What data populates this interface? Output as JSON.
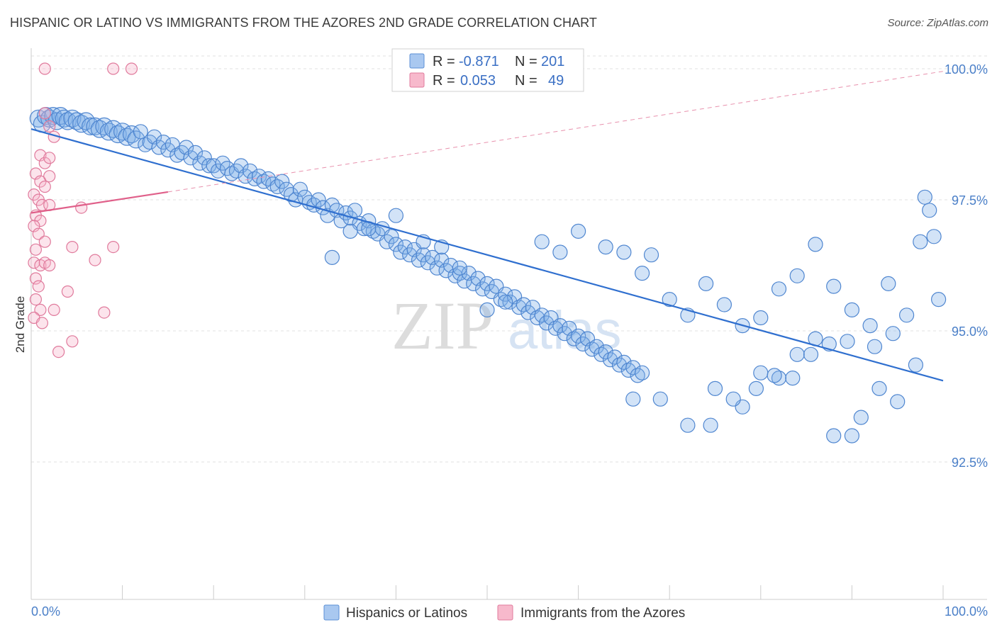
{
  "title": "HISPANIC OR LATINO VS IMMIGRANTS FROM THE AZORES 2ND GRADE CORRELATION CHART",
  "source": "Source: ZipAtlas.com",
  "watermark": {
    "zip": "ZIP",
    "atlas": "atlas"
  },
  "legend": {
    "r_label": "R =",
    "n_label": "N =",
    "rows": [
      {
        "r": "-0.871",
        "n": "201",
        "color": "#a9c8f0",
        "stroke": "#5b8fd6"
      },
      {
        "r": "0.053",
        "n": "49",
        "color": "#f7b9cc",
        "stroke": "#e07a9c"
      }
    ]
  },
  "chart_data": {
    "type": "scatter",
    "title": "HISPANIC OR LATINO VS IMMIGRANTS FROM THE AZORES 2ND GRADE CORRELATION CHART",
    "xlabel": "",
    "ylabel": "2nd Grade",
    "xlim": [
      0,
      100
    ],
    "ylim": [
      89.8,
      100.8
    ],
    "x_tick_labels": [
      "0.0%",
      "100.0%"
    ],
    "y_ticks": [
      92.5,
      95.0,
      97.5,
      100.0
    ],
    "y_tick_labels": [
      "92.5%",
      "95.0%",
      "97.5%",
      "100.0%"
    ],
    "grid": true,
    "legend_position": "top-center",
    "series": [
      {
        "name": "Hispanics or Latinos",
        "color": "#7faee8",
        "stroke": "#4f86d0",
        "trend": {
          "x0": 0,
          "y0": 98.85,
          "x1": 100,
          "y1": 94.05
        },
        "points": [
          [
            0.8,
            99.05
          ],
          [
            1.2,
            98.95
          ],
          [
            1.6,
            99.1
          ],
          [
            2.0,
            99.05
          ],
          [
            2.4,
            99.1
          ],
          [
            2.8,
            99.0
          ],
          [
            3.2,
            99.1
          ],
          [
            3.6,
            99.05
          ],
          [
            4.0,
            99.0
          ],
          [
            4.5,
            99.05
          ],
          [
            5.0,
            99.0
          ],
          [
            5.5,
            98.95
          ],
          [
            6.0,
            99.0
          ],
          [
            6.5,
            98.9
          ],
          [
            7.0,
            98.9
          ],
          [
            7.5,
            98.85
          ],
          [
            8.0,
            98.9
          ],
          [
            8.5,
            98.8
          ],
          [
            9.0,
            98.85
          ],
          [
            9.5,
            98.75
          ],
          [
            10.0,
            98.8
          ],
          [
            10.5,
            98.7
          ],
          [
            11.0,
            98.75
          ],
          [
            11.5,
            98.65
          ],
          [
            12.0,
            98.8
          ],
          [
            12.5,
            98.55
          ],
          [
            13.0,
            98.6
          ],
          [
            13.5,
            98.7
          ],
          [
            14.0,
            98.5
          ],
          [
            14.5,
            98.6
          ],
          [
            15.0,
            98.45
          ],
          [
            15.5,
            98.55
          ],
          [
            16.0,
            98.35
          ],
          [
            16.5,
            98.4
          ],
          [
            17.0,
            98.5
          ],
          [
            17.5,
            98.3
          ],
          [
            18.0,
            98.4
          ],
          [
            18.5,
            98.2
          ],
          [
            19.0,
            98.3
          ],
          [
            19.5,
            98.15
          ],
          [
            20.0,
            98.15
          ],
          [
            20.5,
            98.05
          ],
          [
            21.0,
            98.2
          ],
          [
            21.5,
            98.1
          ],
          [
            22.0,
            98.0
          ],
          [
            22.5,
            98.05
          ],
          [
            23.0,
            98.15
          ],
          [
            23.5,
            97.95
          ],
          [
            24.0,
            98.05
          ],
          [
            24.5,
            97.9
          ],
          [
            25.0,
            97.95
          ],
          [
            25.5,
            97.85
          ],
          [
            26.0,
            97.9
          ],
          [
            26.5,
            97.8
          ],
          [
            27.0,
            97.75
          ],
          [
            27.5,
            97.85
          ],
          [
            28.0,
            97.7
          ],
          [
            28.5,
            97.6
          ],
          [
            29.0,
            97.5
          ],
          [
            29.5,
            97.7
          ],
          [
            30.0,
            97.55
          ],
          [
            30.5,
            97.45
          ],
          [
            31.0,
            97.4
          ],
          [
            31.5,
            97.5
          ],
          [
            32.0,
            97.35
          ],
          [
            32.5,
            97.2
          ],
          [
            33.0,
            97.4
          ],
          [
            33.5,
            97.3
          ],
          [
            34.0,
            97.1
          ],
          [
            34.5,
            97.25
          ],
          [
            35.0,
            97.15
          ],
          [
            35.5,
            97.3
          ],
          [
            36.0,
            97.05
          ],
          [
            36.5,
            96.95
          ],
          [
            37.0,
            97.1
          ],
          [
            37.5,
            96.9
          ],
          [
            38.0,
            96.85
          ],
          [
            38.5,
            96.95
          ],
          [
            39.0,
            96.7
          ],
          [
            39.5,
            96.8
          ],
          [
            40.0,
            96.65
          ],
          [
            40.5,
            96.5
          ],
          [
            41.0,
            96.6
          ],
          [
            41.5,
            96.45
          ],
          [
            42.0,
            96.55
          ],
          [
            42.5,
            96.35
          ],
          [
            43.0,
            96.45
          ],
          [
            43.5,
            96.3
          ],
          [
            44.0,
            96.4
          ],
          [
            44.5,
            96.2
          ],
          [
            45.0,
            96.35
          ],
          [
            45.5,
            96.15
          ],
          [
            46.0,
            96.25
          ],
          [
            46.5,
            96.05
          ],
          [
            47.0,
            96.1
          ],
          [
            47.5,
            95.95
          ],
          [
            48.0,
            96.1
          ],
          [
            48.5,
            95.9
          ],
          [
            49.0,
            96.0
          ],
          [
            49.5,
            95.8
          ],
          [
            50.0,
            95.9
          ],
          [
            50.5,
            95.75
          ],
          [
            51.0,
            95.85
          ],
          [
            51.5,
            95.6
          ],
          [
            52.0,
            95.7
          ],
          [
            52.5,
            95.55
          ],
          [
            53.0,
            95.65
          ],
          [
            53.5,
            95.45
          ],
          [
            54.0,
            95.5
          ],
          [
            54.5,
            95.35
          ],
          [
            55.0,
            95.45
          ],
          [
            55.5,
            95.25
          ],
          [
            56.0,
            95.3
          ],
          [
            56.5,
            95.15
          ],
          [
            57.0,
            95.25
          ],
          [
            57.5,
            95.05
          ],
          [
            58.0,
            95.1
          ],
          [
            58.5,
            94.95
          ],
          [
            59.0,
            95.05
          ],
          [
            59.5,
            94.85
          ],
          [
            60.0,
            94.9
          ],
          [
            60.5,
            94.75
          ],
          [
            61.0,
            94.85
          ],
          [
            61.5,
            94.65
          ],
          [
            62.0,
            94.7
          ],
          [
            62.5,
            94.55
          ],
          [
            63.0,
            94.6
          ],
          [
            63.5,
            94.45
          ],
          [
            64.0,
            94.5
          ],
          [
            64.5,
            94.35
          ],
          [
            65.0,
            94.4
          ],
          [
            65.5,
            94.25
          ],
          [
            66.0,
            94.3
          ],
          [
            66.5,
            94.15
          ],
          [
            67.0,
            94.2
          ],
          [
            33.0,
            96.4
          ],
          [
            35.0,
            96.9
          ],
          [
            37.0,
            96.95
          ],
          [
            40.0,
            97.2
          ],
          [
            43.0,
            96.7
          ],
          [
            45.0,
            96.6
          ],
          [
            47.0,
            96.2
          ],
          [
            50.0,
            95.4
          ],
          [
            52.0,
            95.55
          ],
          [
            56.0,
            96.7
          ],
          [
            58.0,
            96.5
          ],
          [
            60.0,
            96.9
          ],
          [
            63.0,
            96.6
          ],
          [
            65.0,
            96.5
          ],
          [
            67.0,
            96.1
          ],
          [
            68.0,
            96.45
          ],
          [
            70.0,
            95.6
          ],
          [
            72.0,
            95.3
          ],
          [
            74.0,
            95.9
          ],
          [
            76.0,
            95.5
          ],
          [
            78.0,
            95.1
          ],
          [
            80.0,
            95.25
          ],
          [
            82.0,
            95.8
          ],
          [
            84.0,
            96.05
          ],
          [
            86.0,
            96.65
          ],
          [
            88.0,
            95.85
          ],
          [
            90.0,
            95.4
          ],
          [
            92.0,
            95.1
          ],
          [
            94.0,
            95.9
          ],
          [
            96.0,
            95.3
          ],
          [
            98.0,
            97.55
          ],
          [
            99.0,
            96.8
          ],
          [
            98.5,
            97.3
          ],
          [
            97.5,
            96.7
          ],
          [
            99.5,
            95.6
          ],
          [
            66.0,
            93.7
          ],
          [
            69.0,
            93.7
          ],
          [
            72.0,
            93.2
          ],
          [
            75.0,
            93.9
          ],
          [
            78.0,
            93.55
          ],
          [
            80.0,
            94.2
          ],
          [
            82.0,
            94.1
          ],
          [
            84.0,
            94.55
          ],
          [
            86.0,
            94.85
          ],
          [
            88.0,
            93.0
          ],
          [
            90.0,
            93.0
          ],
          [
            91.0,
            93.35
          ],
          [
            93.0,
            93.9
          ],
          [
            95.0,
            93.65
          ],
          [
            97.0,
            94.35
          ],
          [
            74.5,
            93.2
          ],
          [
            77.0,
            93.7
          ],
          [
            79.5,
            93.9
          ],
          [
            81.5,
            94.15
          ],
          [
            83.5,
            94.1
          ],
          [
            85.5,
            94.55
          ],
          [
            87.5,
            94.75
          ],
          [
            89.5,
            94.8
          ],
          [
            92.5,
            94.7
          ],
          [
            94.5,
            94.95
          ]
        ]
      },
      {
        "name": "Immigrants from the Azores",
        "color": "#f5b3c8",
        "stroke": "#e07a9c",
        "trend": {
          "x0": 0,
          "y0": 97.25,
          "x1": 15,
          "y1": 97.65
        },
        "trend_ext": {
          "x0": 15,
          "y0": 97.65,
          "x1": 100,
          "y1": 99.95
        },
        "points": [
          [
            1.5,
            100.0
          ],
          [
            9.0,
            100.0
          ],
          [
            11.0,
            100.0
          ],
          [
            1.5,
            99.15
          ],
          [
            2.0,
            98.9
          ],
          [
            2.5,
            98.7
          ],
          [
            1.0,
            98.35
          ],
          [
            1.5,
            98.2
          ],
          [
            2.0,
            98.3
          ],
          [
            0.5,
            98.0
          ],
          [
            1.0,
            97.85
          ],
          [
            1.5,
            97.75
          ],
          [
            2.0,
            97.95
          ],
          [
            0.3,
            97.6
          ],
          [
            0.8,
            97.5
          ],
          [
            1.2,
            97.4
          ],
          [
            0.5,
            97.2
          ],
          [
            1.0,
            97.1
          ],
          [
            2.0,
            97.4
          ],
          [
            5.5,
            97.35
          ],
          [
            0.3,
            97.0
          ],
          [
            0.8,
            96.85
          ],
          [
            1.5,
            96.7
          ],
          [
            0.5,
            96.55
          ],
          [
            4.5,
            96.6
          ],
          [
            9.0,
            96.6
          ],
          [
            0.3,
            96.3
          ],
          [
            1.0,
            96.25
          ],
          [
            1.5,
            96.3
          ],
          [
            2.0,
            96.25
          ],
          [
            7.0,
            96.35
          ],
          [
            0.5,
            96.0
          ],
          [
            0.8,
            95.85
          ],
          [
            4.0,
            95.75
          ],
          [
            0.5,
            95.6
          ],
          [
            1.0,
            95.4
          ],
          [
            2.5,
            95.4
          ],
          [
            8.0,
            95.35
          ],
          [
            4.5,
            94.8
          ],
          [
            3.0,
            94.6
          ],
          [
            0.3,
            95.25
          ],
          [
            1.2,
            95.15
          ]
        ]
      }
    ]
  },
  "bottom_legend": [
    {
      "label": "Hispanics or Latinos",
      "color": "#a9c8f0",
      "stroke": "#5b8fd6"
    },
    {
      "label": "Immigrants from the Azores",
      "color": "#f7b9cc",
      "stroke": "#e07a9c"
    }
  ]
}
